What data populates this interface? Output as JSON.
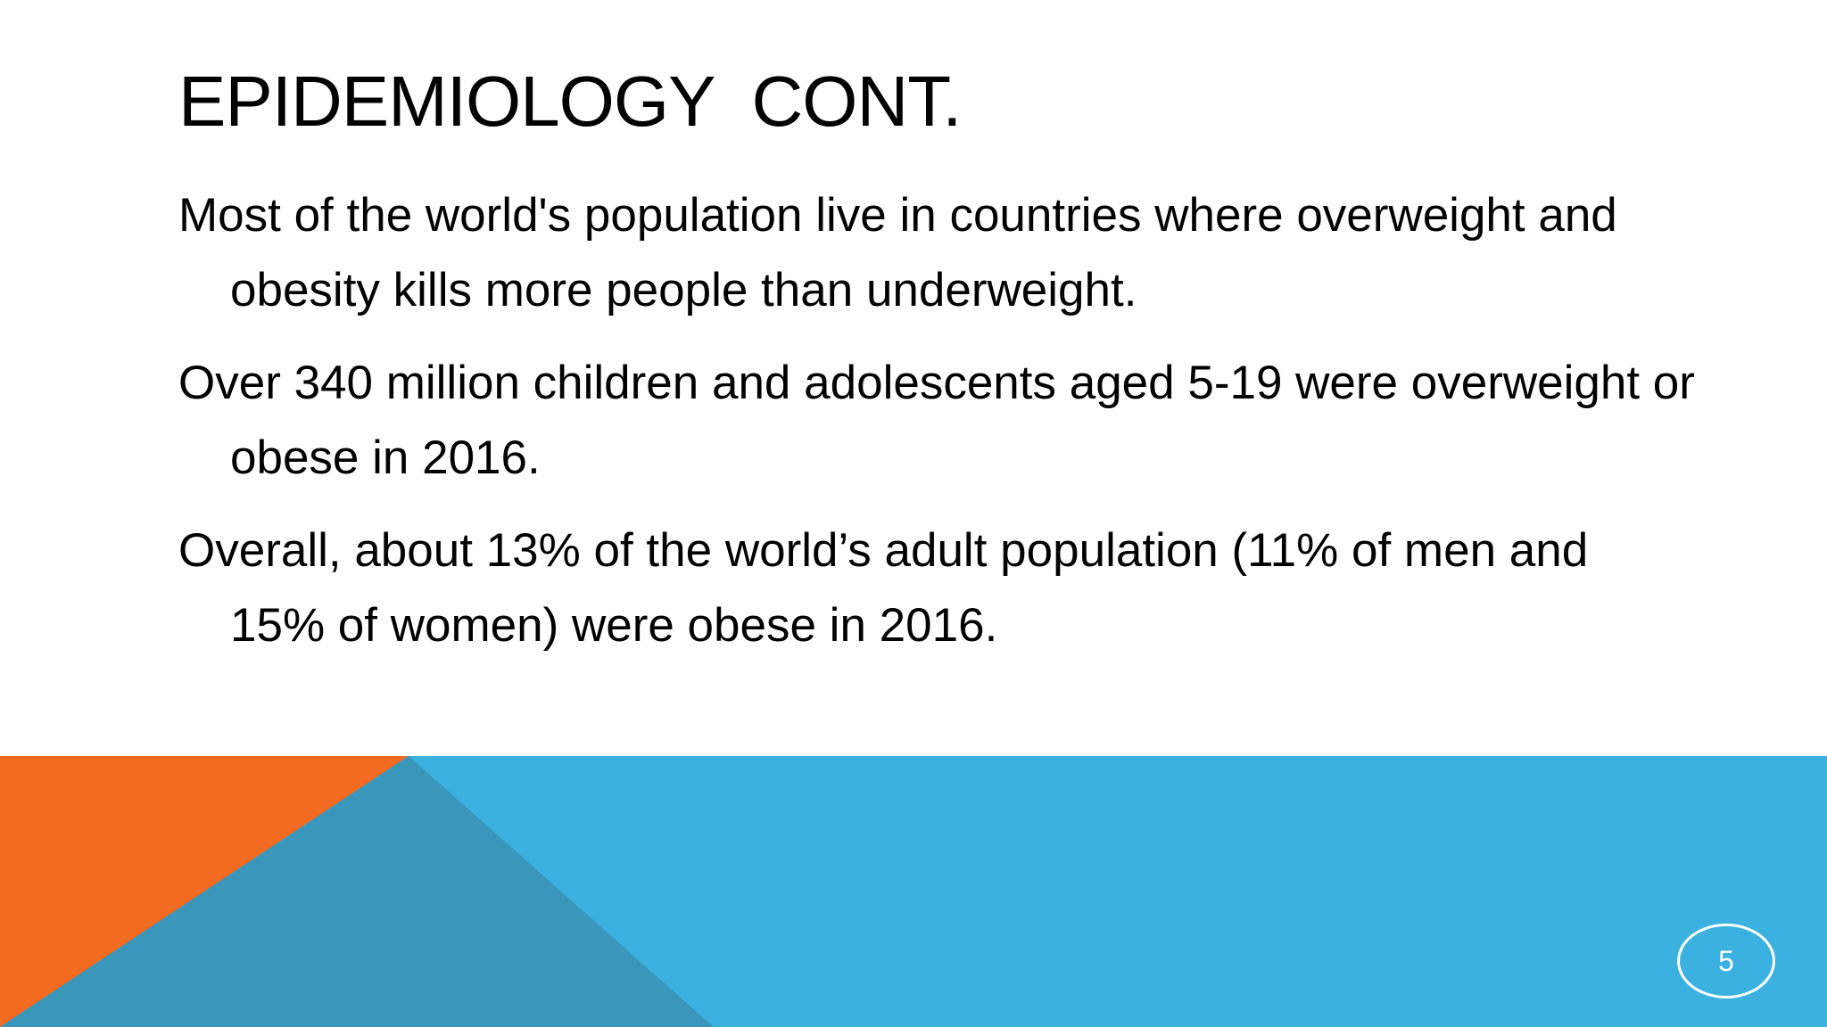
{
  "slide": {
    "title": "EPIDEMIOLOGY  CONT.",
    "bullets": [
      "Most of the world's population live in countries where overweight and obesity kills more people than underweight.",
      "Over 340 million children and adolescents aged 5-19 were overweight or obese in 2016.",
      "Overall, about 13% of the world’s adult population (11% of men and 15% of women) were obese in 2016."
    ],
    "page_number": "5"
  },
  "colors": {
    "orange_accent": "#F26B21",
    "blue_band": "#3BB1E0",
    "dark_blue_triangle": "#3A96BA",
    "title_text": "#000000",
    "page_number": "#FFFFFF"
  }
}
